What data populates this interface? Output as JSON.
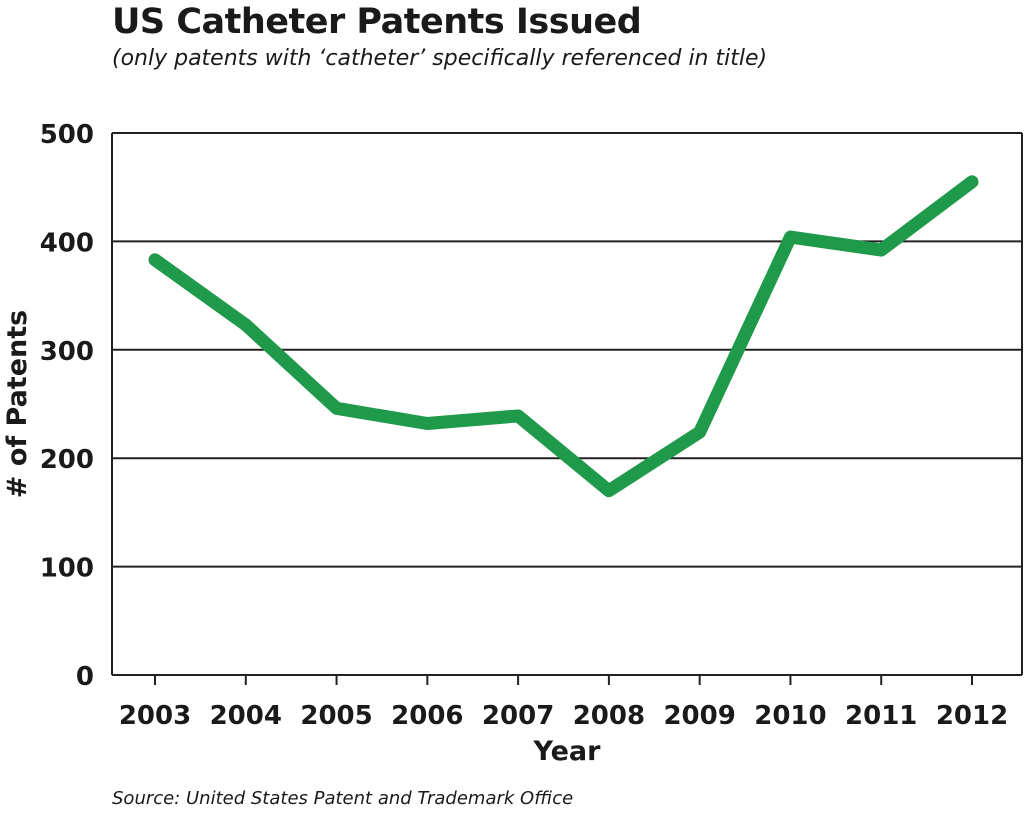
{
  "chart_data": {
    "type": "line",
    "title": "US Catheter Patents Issued",
    "subtitle": "(only patents with ‘catheter’ specifically referenced in title)",
    "xlabel": "Year",
    "ylabel": "# of Patents",
    "source": "Source: United States Patent and Trademark Office",
    "x": [
      "2003",
      "2004",
      "2005",
      "2006",
      "2007",
      "2008",
      "2009",
      "2010",
      "2011",
      "2012"
    ],
    "values": [
      383,
      323,
      246,
      232,
      239,
      170,
      224,
      404,
      392,
      455
    ],
    "ylim": [
      0,
      500
    ],
    "yticks": [
      0,
      100,
      200,
      300,
      400,
      500
    ],
    "grid": "horizontal",
    "line_color": "#1e9a4a"
  }
}
